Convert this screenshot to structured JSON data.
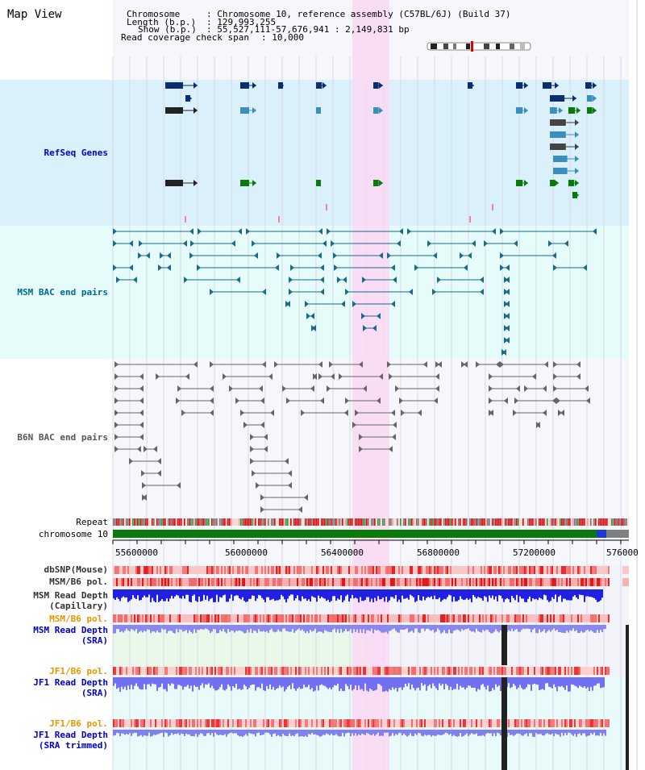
{
  "page_title": "Map View",
  "header": {
    "chromosome_label": "Chromosome",
    "chromosome_value": ": Chromosome 10, reference assembly (C57BL/6J) (Build 37)",
    "length_label": "Length (b.p.)",
    "length_value": ": 129,993,255",
    "show_label": "Show (b.p.)",
    "show_value": ": 55,527,111-57,676,941 : 2,149,831 bp",
    "span_label": "Read coverage check span",
    "span_value": ": 10,000"
  },
  "tracks": {
    "refseq": "RefSeq Genes",
    "msm_bac": "MSM BAC end pairs",
    "b6n_bac": "B6N BAC end pairs",
    "repeat": "Repeat",
    "chromosome": "chromosome 10",
    "dbsnp": "dbSNP(Mouse)",
    "msm_pol": "MSM/B6 pol.",
    "msm_rd_cap_1": "MSM Read Depth",
    "msm_rd_cap_2": "(Capillary)",
    "msm_pol2": "MSM/B6 pol.",
    "msm_rd_sra_1": "MSM Read Depth",
    "msm_rd_sra_2": "(SRA)",
    "jf1_pol": "JF1/B6 pol.",
    "jf1_rd_1": "JF1 Read Depth",
    "jf1_rd_2": "(SRA)",
    "jf1_pol2": "JF1/B6 pol.",
    "jf1_rdt_1": "JF1 Read Depth",
    "jf1_rdt_2": "(SRA trimmed)"
  },
  "axis": {
    "ticks": [
      "55600000",
      "56000000",
      "56400000",
      "56800000",
      "57200000",
      "576000"
    ]
  },
  "colors": {
    "refseq_bg": "#daf1fb",
    "bac_bg": "#e6fcfb",
    "highlight": "#f9d9f4",
    "label_blue": "#0000cc",
    "label_teal": "#006a8a",
    "label_orange": "#e69500",
    "chromosome": "#0a7a0a",
    "depth_blue": "#3030e0",
    "depth_light": "#8080f0"
  }
}
